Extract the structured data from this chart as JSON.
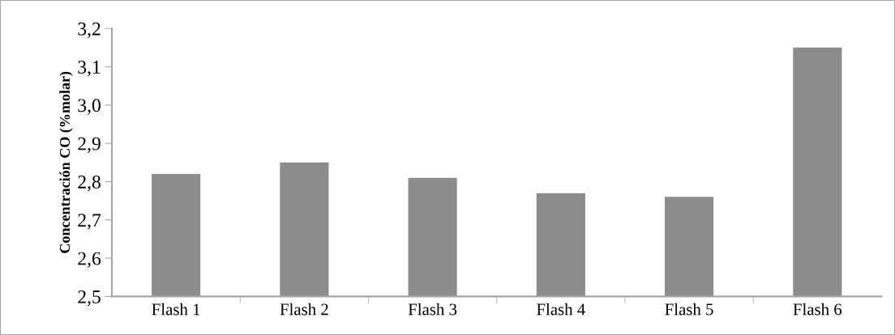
{
  "chart_data": {
    "type": "bar",
    "ylabel": "Concentración CO (%molar)",
    "categories": [
      "Flash 1",
      "Flash 2",
      "Flash 3",
      "Flash 4",
      "Flash 5",
      "Flash 6"
    ],
    "values": [
      2.82,
      2.85,
      2.81,
      2.77,
      2.76,
      3.15
    ],
    "color": "#8c8c8c",
    "ylim": [
      2.5,
      3.2
    ],
    "yticks": [
      {
        "value": 2.5,
        "label": "2,5"
      },
      {
        "value": 2.6,
        "label": "2,6"
      },
      {
        "value": 2.7,
        "label": "2,7"
      },
      {
        "value": 2.8,
        "label": "2,8"
      },
      {
        "value": 2.9,
        "label": "2,9"
      },
      {
        "value": 3.0,
        "label": "3,0"
      },
      {
        "value": 3.1,
        "label": "3,1"
      },
      {
        "value": 3.2,
        "label": "3,2"
      }
    ],
    "grid": false,
    "legend": false
  }
}
